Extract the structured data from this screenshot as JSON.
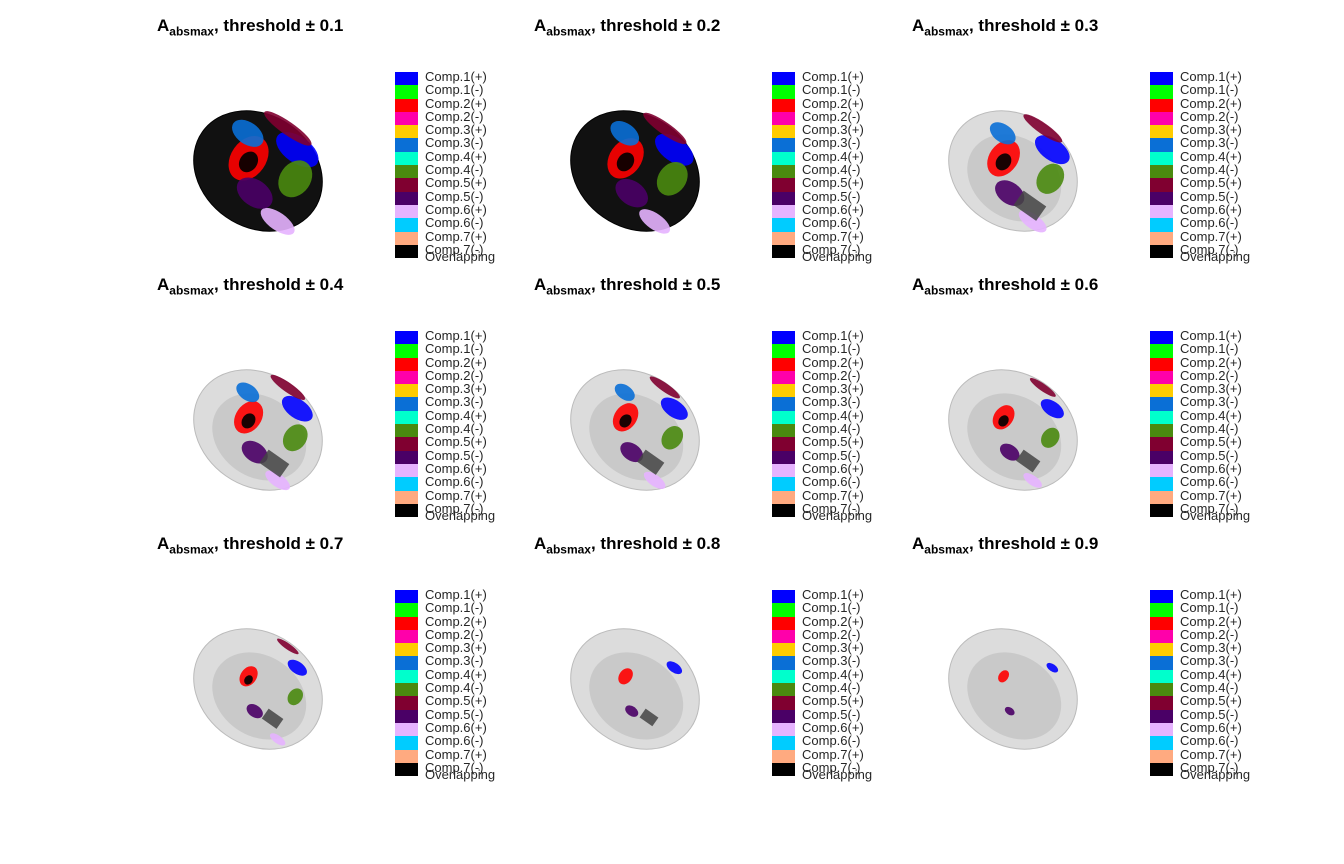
{
  "figure": {
    "panels": [
      {
        "title_main": "A",
        "title_sub": "absmax",
        "title_rest": ", threshold ± 0.1",
        "threshold": 0.1
      },
      {
        "title_main": "A",
        "title_sub": "absmax",
        "title_rest": ", threshold ± 0.2",
        "threshold": 0.2
      },
      {
        "title_main": "A",
        "title_sub": "absmax",
        "title_rest": ", threshold ± 0.3",
        "threshold": 0.3
      },
      {
        "title_main": "A",
        "title_sub": "absmax",
        "title_rest": ", threshold ± 0.4",
        "threshold": 0.4
      },
      {
        "title_main": "A",
        "title_sub": "absmax",
        "title_rest": ", threshold ± 0.5",
        "threshold": 0.5
      },
      {
        "title_main": "A",
        "title_sub": "absmax",
        "title_rest": ", threshold ± 0.6",
        "threshold": 0.6
      },
      {
        "title_main": "A",
        "title_sub": "absmax",
        "title_rest": ", threshold ± 0.7",
        "threshold": 0.7
      },
      {
        "title_main": "A",
        "title_sub": "absmax",
        "title_rest": ", threshold ± 0.8",
        "threshold": 0.8
      },
      {
        "title_main": "A",
        "title_sub": "absmax",
        "title_rest": ", threshold ± 0.9",
        "threshold": 0.9
      }
    ],
    "legend": [
      {
        "label": "Comp.1(+)",
        "color": "#0000ff"
      },
      {
        "label": "Comp.1(-)",
        "color": "#00ff00"
      },
      {
        "label": "Comp.2(+)",
        "color": "#ff0000"
      },
      {
        "label": "Comp.2(-)",
        "color": "#ff00aa"
      },
      {
        "label": "Comp.3(+)",
        "color": "#ffcc00"
      },
      {
        "label": "Comp.3(-)",
        "color": "#0a6fd6"
      },
      {
        "label": "Comp.4(+)",
        "color": "#00ffcc"
      },
      {
        "label": "Comp.4(-)",
        "color": "#4a8a0f"
      },
      {
        "label": "Comp.5(+)",
        "color": "#800030"
      },
      {
        "label": "Comp.5(-)",
        "color": "#4a0066"
      },
      {
        "label": "Comp.6(+)",
        "color": "#e6b3ff"
      },
      {
        "label": "Comp.6(-)",
        "color": "#00ccff"
      },
      {
        "label": "Comp.7(+)",
        "color": "#ffaa80"
      },
      {
        "label": "Comp.7(-)",
        "color": "#000000"
      },
      {
        "label": "Overlapping",
        "color": ""
      }
    ]
  }
}
